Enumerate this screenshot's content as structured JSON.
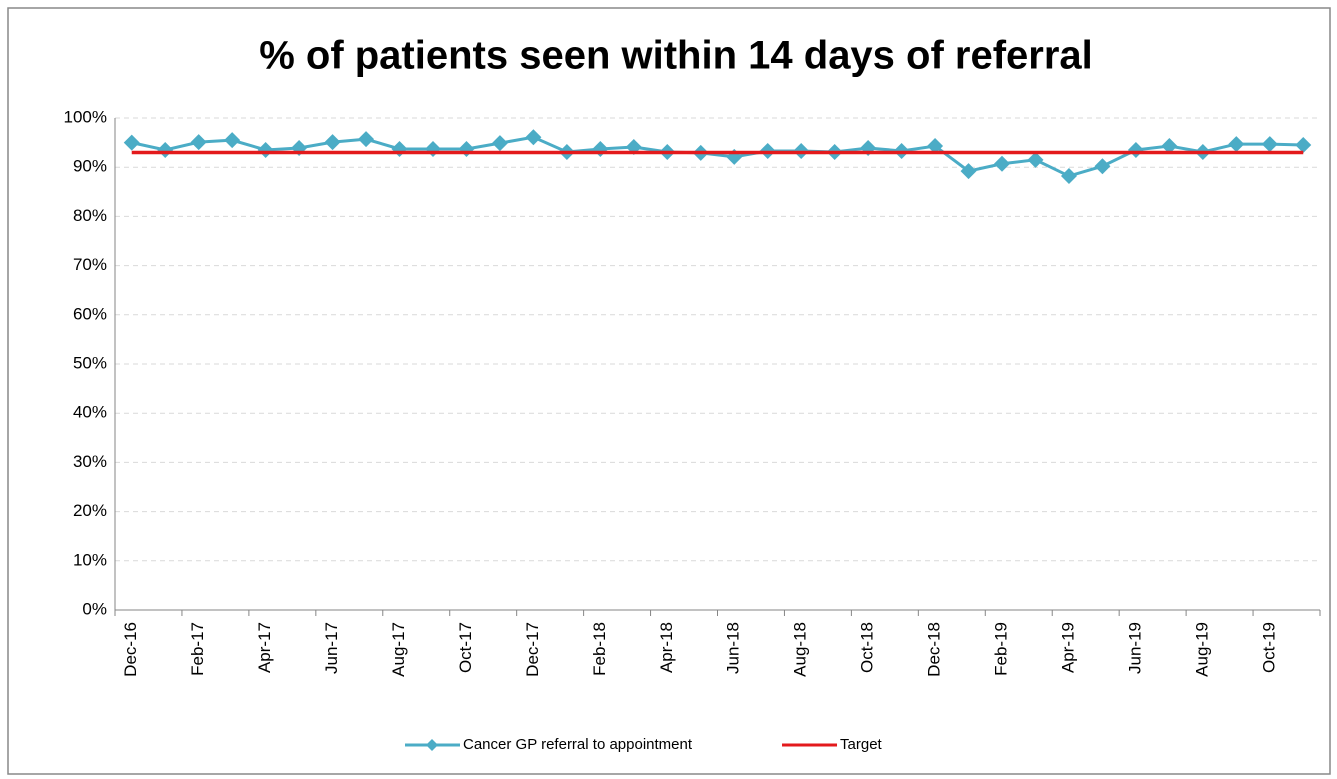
{
  "chart_data": {
    "type": "line",
    "title": "% of patients seen within 14 days of referral",
    "categories": [
      "Dec-16",
      null,
      "Feb-17",
      null,
      "Apr-17",
      null,
      "Jun-17",
      null,
      "Aug-17",
      null,
      "Oct-17",
      null,
      "Dec-17",
      null,
      "Feb-18",
      null,
      "Apr-18",
      null,
      "Jun-18",
      null,
      "Aug-18",
      null,
      "Oct-18",
      null,
      "Dec-18",
      null,
      "Feb-19",
      null,
      "Apr-19",
      null,
      "Jun-19",
      null,
      "Aug-19",
      null,
      "Oct-19",
      null
    ],
    "series": [
      {
        "name": "Cancer GP referral to appointment",
        "color": "#4bacc6",
        "marker": "diamond",
        "values": [
          95,
          93.5,
          95.1,
          95.5,
          93.5,
          93.9,
          95.1,
          95.7,
          93.7,
          93.7,
          93.7,
          94.9,
          96.1,
          93.1,
          93.7,
          94.1,
          93.1,
          92.9,
          92.1,
          93.3,
          93.3,
          93.1,
          93.9,
          93.3,
          94.3,
          89.2,
          90.7,
          91.5,
          88.2,
          90.2,
          93.5,
          94.3,
          93.1,
          94.7,
          94.7,
          94.5
        ]
      },
      {
        "name": "Target",
        "color": "#e31a1c",
        "marker": "none",
        "values": [
          93,
          93,
          93,
          93,
          93,
          93,
          93,
          93,
          93,
          93,
          93,
          93,
          93,
          93,
          93,
          93,
          93,
          93,
          93,
          93,
          93,
          93,
          93,
          93,
          93,
          93,
          93,
          93,
          93,
          93,
          93,
          93,
          93,
          93,
          93,
          93
        ]
      }
    ],
    "ylim": [
      0,
      100
    ],
    "yticks": [
      {
        "value": 0,
        "label": "0%"
      },
      {
        "value": 10,
        "label": "10%"
      },
      {
        "value": 20,
        "label": "20%"
      },
      {
        "value": 30,
        "label": "30%"
      },
      {
        "value": 40,
        "label": "40%"
      },
      {
        "value": 50,
        "label": "50%"
      },
      {
        "value": 60,
        "label": "60%"
      },
      {
        "value": 70,
        "label": "70%"
      },
      {
        "value": 80,
        "label": "80%"
      },
      {
        "value": 90,
        "label": "90%"
      },
      {
        "value": 100,
        "label": "100%"
      }
    ],
    "grid": true,
    "legend": "bottom"
  }
}
